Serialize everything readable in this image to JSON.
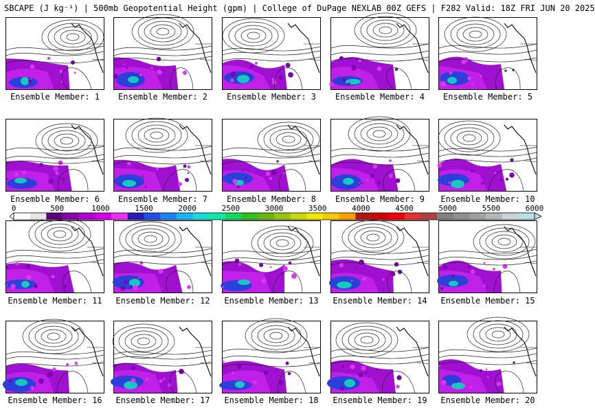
{
  "title": "SBCAPE (J kg⁻¹) | 500mb Geopotential Height (gpm) | College of DuPage NEXLAB 00Z GEFS | F282 Valid: 18Z FRI JUN 20 2025",
  "colorbar": {
    "tick_labels": [
      "0",
      "500",
      "1000",
      "1500",
      "2000",
      "2500",
      "3000",
      "3500",
      "4000",
      "4500",
      "5000",
      "5500",
      "6000"
    ],
    "colors": [
      "#ffffff",
      "#e6e6e6",
      "#5a007a",
      "#8800a8",
      "#b000d0",
      "#d400e8",
      "#e830f4",
      "#2a1ab8",
      "#1f4ee8",
      "#1c84f0",
      "#18b4f4",
      "#14dcd8",
      "#10e8a8",
      "#10d860",
      "#30c020",
      "#68b410",
      "#98c410",
      "#c8d808",
      "#f0e800",
      "#f8c800",
      "#f8a000",
      "#b01818",
      "#d00000",
      "#f00000",
      "#e83030",
      "#b04040",
      "#808080",
      "#909090",
      "#a0a0a0",
      "#b0b8bc",
      "#c8d4d8",
      "#b8e0e8"
    ]
  },
  "members": [
    {
      "label": "Ensemble Member: 1"
    },
    {
      "label": "Ensemble Member: 2"
    },
    {
      "label": "Ensemble Member: 3"
    },
    {
      "label": "Ensemble Member: 4"
    },
    {
      "label": "Ensemble Member: 5"
    },
    {
      "label": "Ensemble Member: 6"
    },
    {
      "label": "Ensemble Member: 7"
    },
    {
      "label": "Ensemble Member: 8"
    },
    {
      "label": "Ensemble Member: 9"
    },
    {
      "label": "Ensemble Member: 10"
    },
    {
      "label": "Ensemble Member: 11"
    },
    {
      "label": "Ensemble Member: 12"
    },
    {
      "label": "Ensemble Member: 13"
    },
    {
      "label": "Ensemble Member: 14"
    },
    {
      "label": "Ensemble Member: 15"
    },
    {
      "label": "Ensemble Member: 16"
    },
    {
      "label": "Ensemble Member: 17"
    },
    {
      "label": "Ensemble Member: 18"
    },
    {
      "label": "Ensemble Member: 19"
    },
    {
      "label": "Ensemble Member: 20"
    }
  ]
}
